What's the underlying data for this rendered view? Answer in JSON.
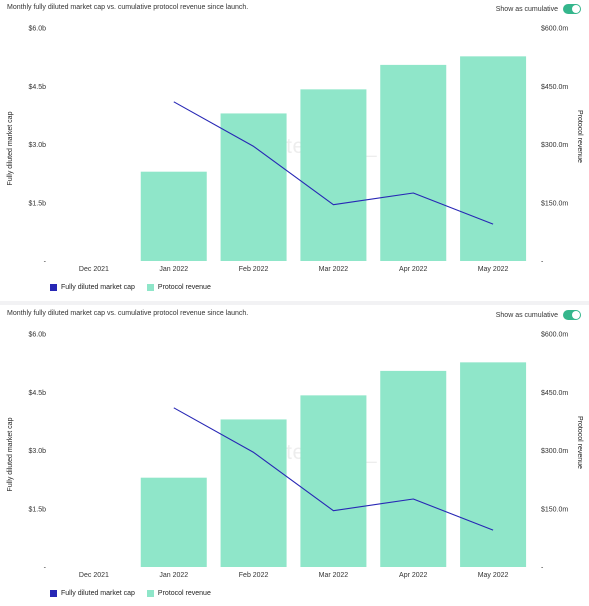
{
  "colors": {
    "market_cap": "#2727b5",
    "revenue": "#8fe6c9",
    "toggle": "#35b68c"
  },
  "panels": [
    {
      "subtitle": "Monthly fully diluted market cap vs. cumulative protocol revenue since launch.",
      "toggle_label": "Show as cumulative",
      "toggle_on": true,
      "watermark": "token terminal_",
      "legend": [
        "Fully diluted market cap",
        "Protocol revenue"
      ]
    },
    {
      "subtitle": "Monthly fully diluted market cap vs. cumulative protocol revenue since launch.",
      "toggle_label": "Show as cumulative",
      "toggle_on": true,
      "watermark": "token terminal_",
      "legend": [
        "Fully diluted market cap",
        "Protocol revenue"
      ]
    }
  ],
  "chart_data": [
    {
      "type": "bar+line",
      "categories": [
        "Dec 2021",
        "Jan 2022",
        "Feb 2022",
        "Mar 2022",
        "Apr 2022",
        "May 2022"
      ],
      "series": [
        {
          "name": "Protocol revenue",
          "kind": "bar",
          "axis": "right",
          "unit": "$m",
          "values": [
            null,
            230,
            380,
            442,
            505,
            527
          ]
        },
        {
          "name": "Fully diluted market cap",
          "kind": "line",
          "axis": "left",
          "unit": "$b",
          "values": [
            null,
            4.1,
            2.95,
            1.45,
            1.75,
            0.95
          ]
        }
      ],
      "y_left": {
        "label": "Fully diluted market cap",
        "min": 0,
        "max": 6,
        "ticks": [
          "-",
          "$1.5b",
          "$3.0b",
          "$4.5b",
          "$6.0b"
        ]
      },
      "y_right": {
        "label": "Protocol revenue",
        "min": 0,
        "max": 600,
        "ticks": [
          "-",
          "$150.0m",
          "$300.0m",
          "$450.0m",
          "$600.0m"
        ]
      },
      "grid": false,
      "legend_position": "bottom-left"
    },
    {
      "type": "bar+line",
      "categories": [
        "Dec 2021",
        "Jan 2022",
        "Feb 2022",
        "Mar 2022",
        "Apr 2022",
        "May 2022"
      ],
      "series": [
        {
          "name": "Protocol revenue",
          "kind": "bar",
          "axis": "right",
          "unit": "$m",
          "values": [
            null,
            230,
            380,
            442,
            505,
            527
          ]
        },
        {
          "name": "Fully diluted market cap",
          "kind": "line",
          "axis": "left",
          "unit": "$b",
          "values": [
            null,
            4.1,
            2.95,
            1.45,
            1.75,
            0.95
          ]
        }
      ],
      "y_left": {
        "label": "Fully diluted market cap",
        "min": 0,
        "max": 6,
        "ticks": [
          "-",
          "$1.5b",
          "$3.0b",
          "$4.5b",
          "$6.0b"
        ]
      },
      "y_right": {
        "label": "Protocol revenue",
        "min": 0,
        "max": 600,
        "ticks": [
          "-",
          "$150.0m",
          "$300.0m",
          "$450.0m",
          "$600.0m"
        ]
      },
      "grid": false,
      "legend_position": "bottom-left"
    }
  ]
}
